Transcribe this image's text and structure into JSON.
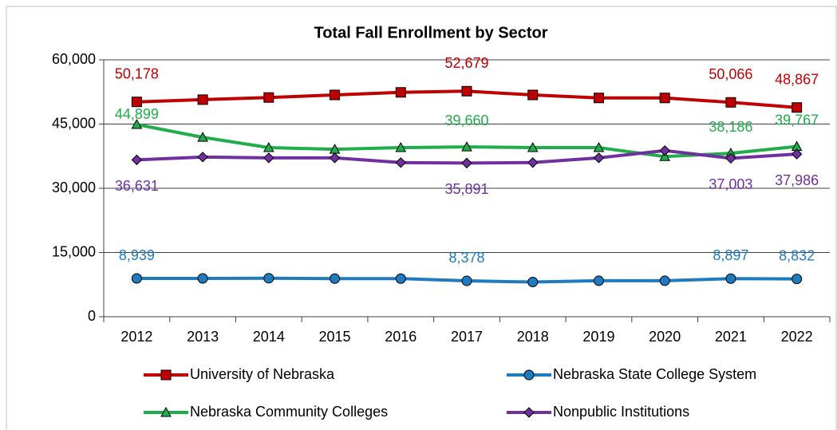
{
  "chart_data": {
    "type": "line",
    "title": "Total Fall Enrollment by Sector",
    "categories": [
      "2012",
      "2013",
      "2014",
      "2015",
      "2016",
      "2017",
      "2018",
      "2019",
      "2020",
      "2021",
      "2022"
    ],
    "ylim": [
      0,
      60000
    ],
    "yticks": [
      0,
      {
        "value": 15000,
        "label": "15,000"
      },
      {
        "value": 30000,
        "label": "30,000"
      },
      {
        "value": 45000,
        "label": "45,000"
      },
      {
        "value": 60000,
        "label": "60,000"
      }
    ],
    "grid": true,
    "series": [
      {
        "name": "University of Nebraska",
        "color": "#c00000",
        "marker": "square",
        "values": [
          50178,
          50700,
          51200,
          51800,
          52400,
          52679,
          51800,
          51100,
          51100,
          50066,
          48867
        ],
        "value_labels": [
          "50,178",
          null,
          null,
          null,
          null,
          "52,679",
          null,
          null,
          null,
          "50,066",
          "48,867"
        ]
      },
      {
        "name": "Nebraska State College System",
        "color": "#1f7bc0",
        "marker": "circle",
        "values": [
          8939,
          8950,
          8980,
          8900,
          8900,
          8378,
          8100,
          8400,
          8400,
          8897,
          8832
        ],
        "value_labels": [
          "8,939",
          null,
          null,
          null,
          null,
          "8,378",
          null,
          null,
          null,
          "8,897",
          "8,832"
        ]
      },
      {
        "name": "Nebraska Community Colleges",
        "color": "#1fae4a",
        "marker": "triangle",
        "values": [
          44899,
          41900,
          39500,
          39100,
          39500,
          39660,
          39500,
          39500,
          37400,
          38186,
          39767
        ],
        "value_labels": [
          "44,899",
          null,
          null,
          null,
          null,
          "39,660",
          null,
          null,
          null,
          "38,186",
          "39,767"
        ]
      },
      {
        "name": "Nonpublic Institutions",
        "color": "#7030a0",
        "marker": "diamond",
        "values": [
          36631,
          37300,
          37100,
          37100,
          36000,
          35891,
          36000,
          37100,
          38800,
          37003,
          37986
        ],
        "value_labels": [
          "36,631",
          null,
          null,
          null,
          null,
          "35,891",
          null,
          null,
          null,
          "37,003",
          "37,986"
        ]
      }
    ]
  }
}
